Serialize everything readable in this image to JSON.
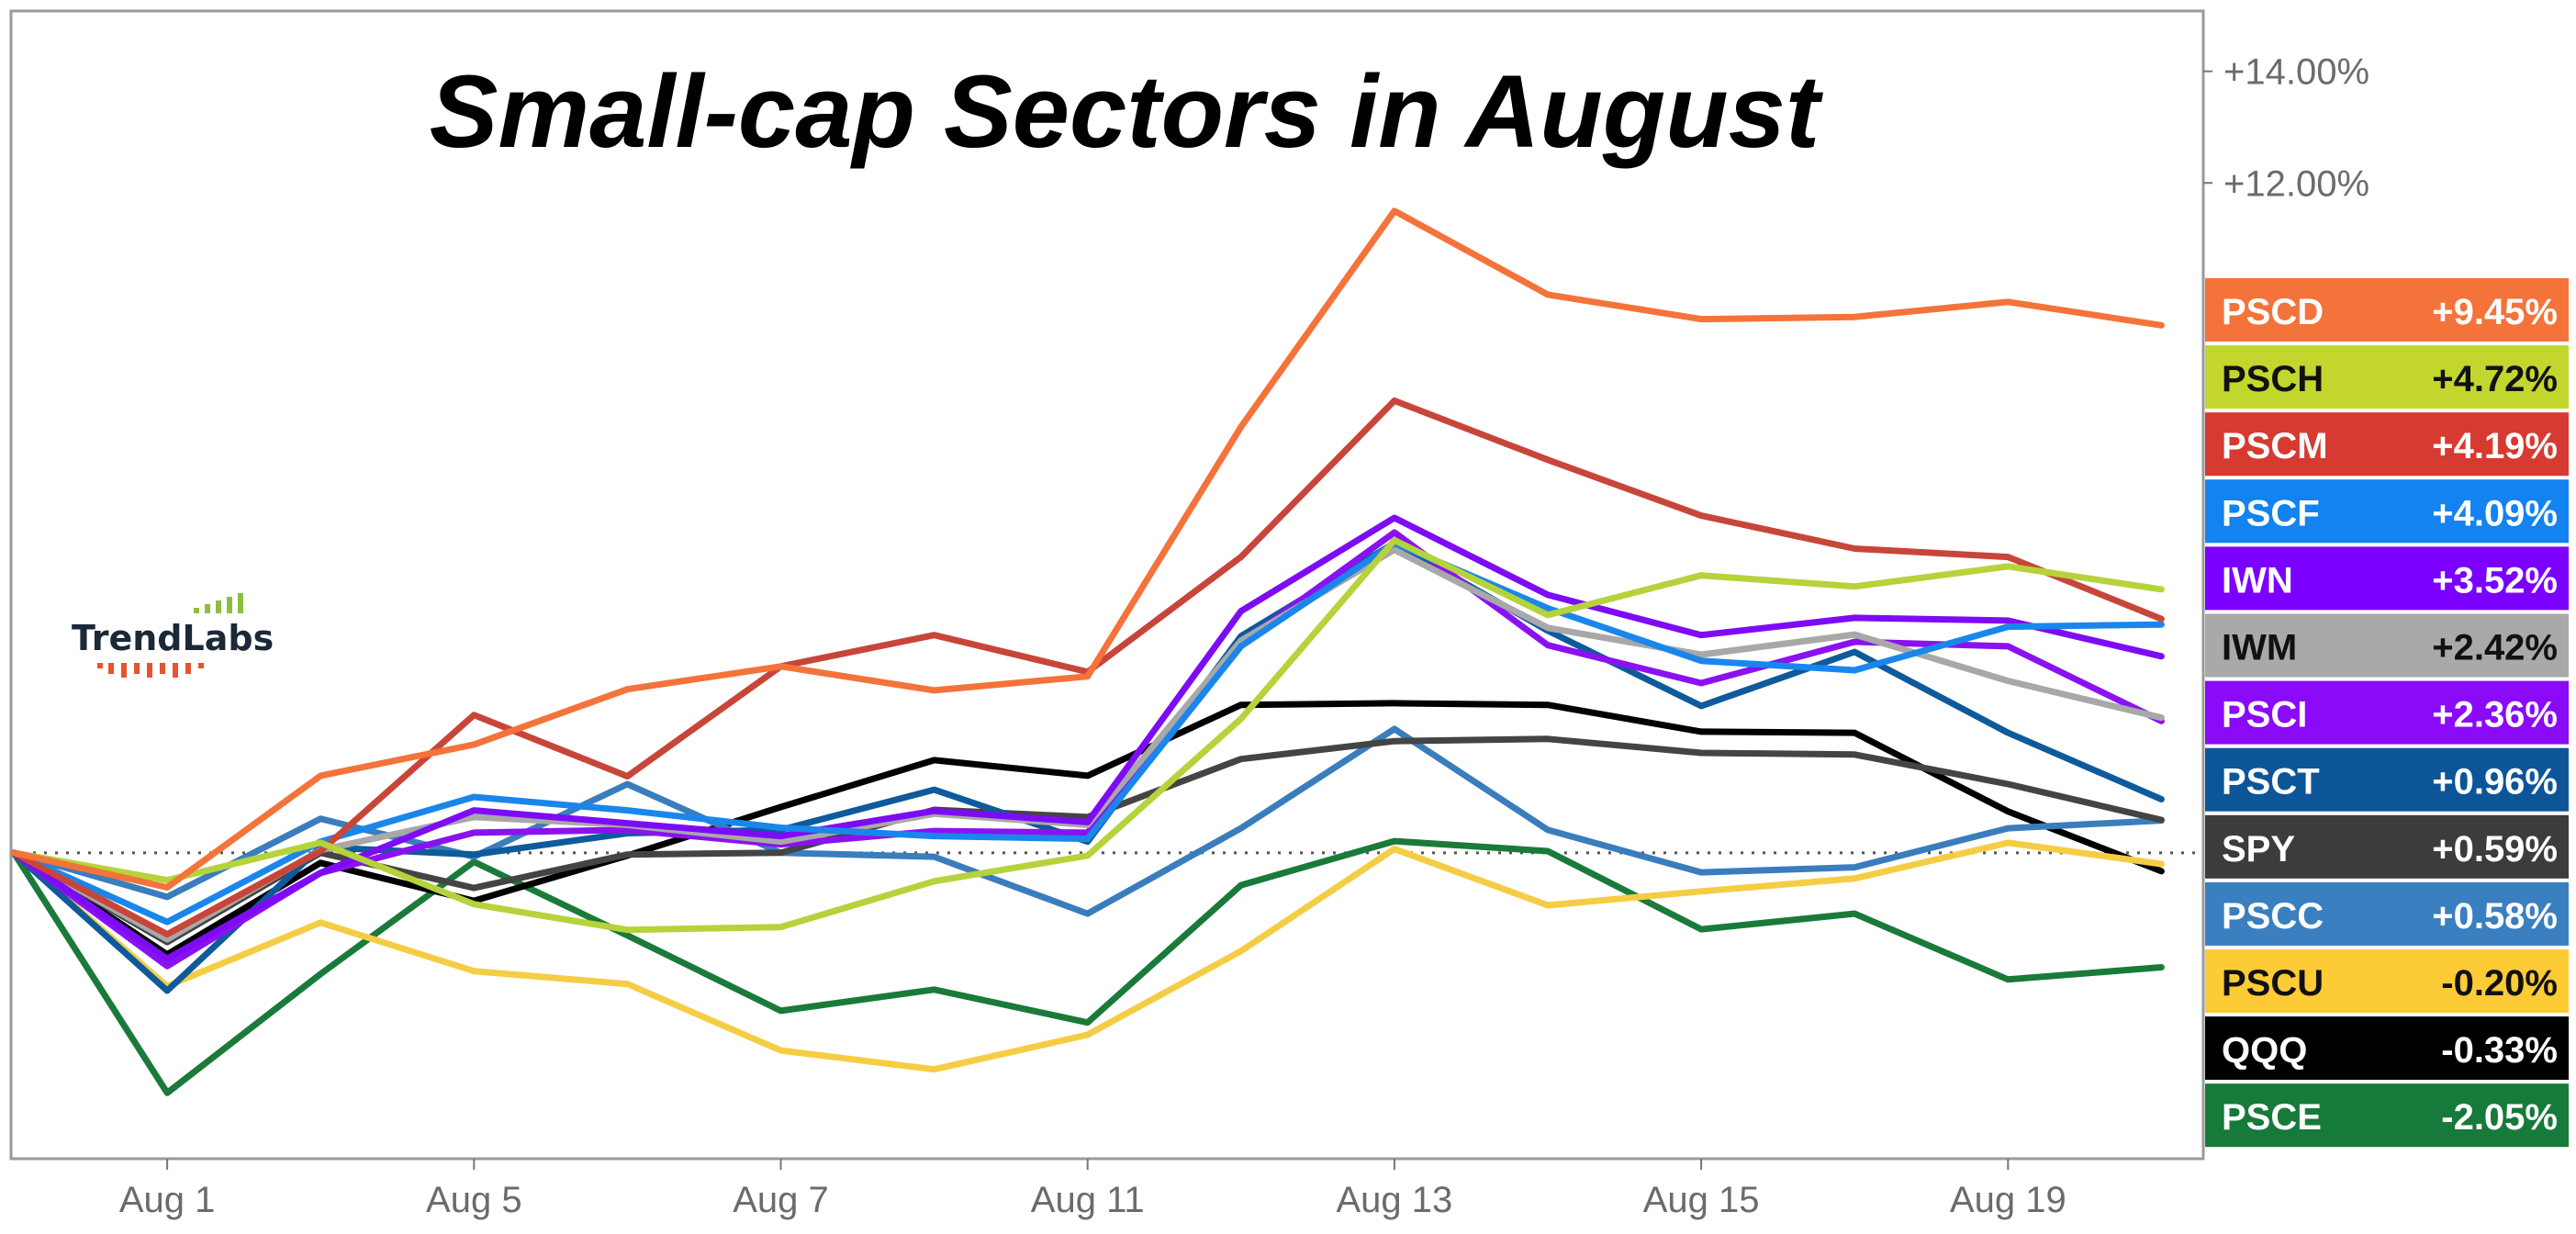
{
  "chart_data": {
    "type": "line",
    "title": "Small-cap Sectors in August",
    "xlabel": "",
    "ylabel": "",
    "ylim": [
      -5.48,
      15.08
    ],
    "y_ticks": [
      {
        "value": 14,
        "label": "+14.00%"
      },
      {
        "value": 12,
        "label": "+12.00%"
      }
    ],
    "x": [
      "Jul 31",
      "Aug 1",
      "Aug 2",
      "Aug 5",
      "Aug 6",
      "Aug 7",
      "Aug 8",
      "Aug 11",
      "Aug 12",
      "Aug 13",
      "Aug 14",
      "Aug 15",
      "Aug 16",
      "Aug 19",
      "Aug 20"
    ],
    "x_ticks": [
      {
        "index": 1,
        "label": "Aug 1"
      },
      {
        "index": 3,
        "label": "Aug 5"
      },
      {
        "index": 5,
        "label": "Aug 7"
      },
      {
        "index": 7,
        "label": "Aug 11"
      },
      {
        "index": 9,
        "label": "Aug 13"
      },
      {
        "index": 11,
        "label": "Aug 15"
      },
      {
        "index": 13,
        "label": "Aug 19"
      }
    ],
    "zero_line": "dotted",
    "grid": false,
    "legend": "right",
    "series": [
      {
        "name": "PSCD",
        "final_label": "+9.45%",
        "color": "#f4733a",
        "label_bg": "#f4733a",
        "label_fg": "#ffffff",
        "values": [
          0,
          -0.62,
          1.38,
          1.94,
          2.93,
          3.34,
          2.91,
          3.16,
          7.63,
          11.5,
          10.0,
          9.56,
          9.6,
          9.87,
          9.45
        ]
      },
      {
        "name": "PSCH",
        "final_label": "+4.72%",
        "color": "#b5d33a",
        "label_bg": "#c2d62e",
        "label_fg": "#111111",
        "values": [
          0,
          -0.49,
          0.18,
          -0.92,
          -1.38,
          -1.33,
          -0.51,
          -0.05,
          2.4,
          5.6,
          4.26,
          4.97,
          4.77,
          5.13,
          4.72
        ]
      },
      {
        "name": "PSCM",
        "final_label": "+4.19%",
        "color": "#c8453a",
        "label_bg": "#d63a30",
        "label_fg": "#ffffff",
        "values": [
          0,
          -1.46,
          0.03,
          2.47,
          1.37,
          3.34,
          3.9,
          3.24,
          5.3,
          8.1,
          7.04,
          6.04,
          5.45,
          5.3,
          4.19
        ]
      },
      {
        "name": "PSCF",
        "final_label": "+4.09%",
        "color": "#1a86ec",
        "label_bg": "#1283f0",
        "label_fg": "#ffffff",
        "values": [
          0,
          -1.24,
          0.2,
          1.0,
          0.76,
          0.45,
          0.3,
          0.25,
          3.7,
          5.55,
          4.38,
          3.44,
          3.27,
          4.05,
          4.09
        ]
      },
      {
        "name": "IWN",
        "final_label": "+3.52%",
        "color": "#7d0cf5",
        "label_bg": "#7b00ff",
        "label_fg": "#ffffff",
        "values": [
          0,
          -1.9,
          -0.36,
          0.76,
          0.53,
          0.3,
          0.75,
          0.55,
          4.33,
          6.0,
          4.62,
          3.9,
          4.21,
          4.16,
          3.52
        ]
      },
      {
        "name": "IWM",
        "final_label": "+2.42%",
        "color": "#a8a8a8",
        "label_bg": "#a9a9a9",
        "label_fg": "#111111",
        "values": [
          0,
          -1.55,
          0.05,
          0.64,
          0.5,
          0.2,
          0.7,
          0.5,
          3.8,
          5.43,
          4.03,
          3.55,
          3.91,
          3.08,
          2.42
        ]
      },
      {
        "name": "PSCI",
        "final_label": "+2.36%",
        "color": "#8a12f0",
        "label_bg": "#8b0af8",
        "label_fg": "#ffffff",
        "values": [
          0,
          -2.03,
          -0.36,
          0.36,
          0.41,
          0.15,
          0.39,
          0.36,
          3.75,
          5.74,
          3.72,
          3.04,
          3.78,
          3.7,
          2.36
        ]
      },
      {
        "name": "PSCT",
        "final_label": "+0.96%",
        "color": "#0f5a9c",
        "label_bg": "#0d5599",
        "label_fg": "#ffffff",
        "values": [
          0,
          -2.47,
          0.1,
          -0.03,
          0.35,
          0.41,
          1.13,
          0.2,
          3.88,
          5.55,
          3.98,
          2.63,
          3.6,
          2.15,
          0.96
        ]
      },
      {
        "name": "SPY",
        "final_label": "+0.59%",
        "color": "#444444",
        "label_bg": "#3c3c3c",
        "label_fg": "#ffffff",
        "values": [
          0,
          -1.6,
          0.0,
          -0.63,
          -0.03,
          0.0,
          0.77,
          0.64,
          1.68,
          2.0,
          2.04,
          1.79,
          1.76,
          1.23,
          0.59
        ]
      },
      {
        "name": "PSCC",
        "final_label": "+0.58%",
        "color": "#3a7dbd",
        "label_bg": "#3a7fc0",
        "label_fg": "#ffffff",
        "values": [
          0,
          -0.79,
          0.61,
          -0.07,
          1.23,
          0.0,
          -0.07,
          -1.09,
          0.44,
          2.22,
          0.41,
          -0.35,
          -0.26,
          0.44,
          0.58
        ]
      },
      {
        "name": "PSCU",
        "final_label": "-0.20%",
        "color": "#f5cd45",
        "label_bg": "#fdcb35",
        "label_fg": "#111111",
        "values": [
          0,
          -2.39,
          -1.25,
          -2.12,
          -2.35,
          -3.54,
          -3.88,
          -3.26,
          -1.76,
          0.07,
          -0.94,
          -0.69,
          -0.46,
          0.18,
          -0.2
        ]
      },
      {
        "name": "QQQ",
        "final_label": "-0.33%",
        "color": "#000000",
        "label_bg": "#000000",
        "label_fg": "#ffffff",
        "values": [
          0,
          -1.82,
          -0.18,
          -0.86,
          -0.05,
          0.82,
          1.66,
          1.38,
          2.65,
          2.68,
          2.65,
          2.17,
          2.15,
          0.74,
          -0.33
        ]
      },
      {
        "name": "PSCE",
        "final_label": "-2.05%",
        "color": "#1a7a3a",
        "label_bg": "#167a3a",
        "label_fg": "#ffffff",
        "values": [
          0,
          -4.3,
          -2.17,
          -0.16,
          -1.48,
          -2.83,
          -2.45,
          -3.04,
          -0.58,
          0.21,
          0.03,
          -1.37,
          -1.09,
          -2.27,
          -2.05
        ]
      }
    ]
  },
  "logo": {
    "text": "TrendLabs",
    "bar_color_top": "#8cbf3f",
    "bar_color_bottom": "#e8532f"
  }
}
